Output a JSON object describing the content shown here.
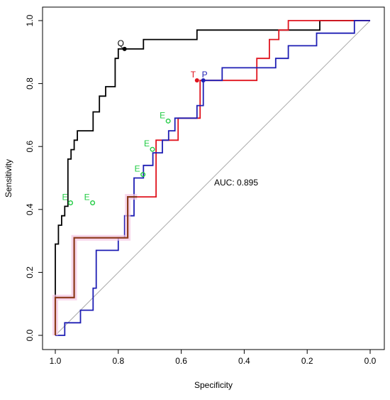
{
  "chart_data": {
    "type": "line",
    "title": "",
    "xlabel": "Specificity",
    "ylabel": "Sensitivity",
    "xlim": [
      1.0,
      0.0
    ],
    "ylim": [
      0.0,
      1.0
    ],
    "x_reversed": true,
    "x_ticks": [
      "1.0",
      "0.8",
      "0.6",
      "0.4",
      "0.2",
      "0.0"
    ],
    "y_ticks": [
      "0.0",
      "0.2",
      "0.4",
      "0.6",
      "0.8",
      "1.0"
    ],
    "grid": false,
    "legend": "none",
    "annotation": "AUC: 0.895",
    "diagonal": {
      "x": [
        1.0,
        0.0
      ],
      "y": [
        0.0,
        1.0
      ],
      "color": "#aaaaaa"
    },
    "series": [
      {
        "color": "#000000",
        "x": [
          1.0,
          1.0,
          0.99,
          0.99,
          0.98,
          0.98,
          0.97,
          0.97,
          0.96,
          0.96,
          0.95,
          0.95,
          0.94,
          0.94,
          0.93,
          0.93,
          0.92,
          0.92,
          0.88,
          0.88,
          0.86,
          0.86,
          0.84,
          0.84,
          0.81,
          0.81,
          0.8,
          0.8,
          0.78,
          0.78,
          0.77,
          0.77,
          0.72,
          0.72,
          0.7,
          0.7,
          0.55,
          0.55,
          0.18,
          0.16,
          0.16,
          0.0
        ],
        "y": [
          0.0,
          0.29,
          0.29,
          0.35,
          0.35,
          0.38,
          0.38,
          0.41,
          0.41,
          0.56,
          0.56,
          0.59,
          0.59,
          0.62,
          0.62,
          0.65,
          0.65,
          0.65,
          0.65,
          0.71,
          0.71,
          0.76,
          0.76,
          0.79,
          0.79,
          0.88,
          0.88,
          0.91,
          0.91,
          0.91,
          0.91,
          0.91,
          0.91,
          0.94,
          0.94,
          0.94,
          0.94,
          0.97,
          0.97,
          0.97,
          1.0,
          1.0
        ]
      },
      {
        "color": "#e0141e",
        "x": [
          1.0,
          1.0,
          0.94,
          0.94,
          0.77,
          0.77,
          0.68,
          0.68,
          0.61,
          0.61,
          0.54,
          0.54,
          0.47,
          0.47,
          0.36,
          0.36,
          0.32,
          0.32,
          0.29,
          0.29,
          0.26,
          0.26,
          0.0
        ],
        "y": [
          0.0,
          0.12,
          0.12,
          0.31,
          0.31,
          0.44,
          0.44,
          0.62,
          0.62,
          0.69,
          0.69,
          0.81,
          0.81,
          0.81,
          0.81,
          0.88,
          0.88,
          0.94,
          0.94,
          0.97,
          0.97,
          1.0,
          1.0
        ]
      },
      {
        "color": "#1e1eb4",
        "x": [
          1.0,
          0.97,
          0.97,
          0.92,
          0.92,
          0.88,
          0.88,
          0.87,
          0.87,
          0.85,
          0.85,
          0.8,
          0.8,
          0.78,
          0.78,
          0.75,
          0.75,
          0.72,
          0.72,
          0.69,
          0.69,
          0.66,
          0.66,
          0.64,
          0.64,
          0.62,
          0.62,
          0.59,
          0.59,
          0.55,
          0.55,
          0.53,
          0.53,
          0.47,
          0.47,
          0.35,
          0.35,
          0.3,
          0.3,
          0.26,
          0.26,
          0.17,
          0.17,
          0.05,
          0.05,
          0.0
        ],
        "y": [
          0.0,
          0.0,
          0.04,
          0.04,
          0.08,
          0.08,
          0.15,
          0.15,
          0.27,
          0.27,
          0.27,
          0.27,
          0.31,
          0.31,
          0.38,
          0.38,
          0.5,
          0.5,
          0.54,
          0.54,
          0.58,
          0.58,
          0.62,
          0.62,
          0.65,
          0.65,
          0.69,
          0.69,
          0.69,
          0.69,
          0.73,
          0.73,
          0.81,
          0.81,
          0.85,
          0.85,
          0.85,
          0.85,
          0.88,
          0.88,
          0.92,
          0.92,
          0.96,
          0.96,
          1.0,
          1.0
        ]
      },
      {
        "color": "#8b3a1a",
        "x": [
          1.0,
          1.0,
          0.94,
          0.94,
          0.77,
          0.77,
          0.74
        ],
        "y": [
          0.0,
          0.12,
          0.12,
          0.31,
          0.31,
          0.44,
          0.44
        ]
      }
    ],
    "points": [
      {
        "label": "Q",
        "x": 0.78,
        "y": 0.91,
        "color": "#000000"
      },
      {
        "label": "T",
        "x": 0.55,
        "y": 0.81,
        "color": "#e0141e"
      },
      {
        "label": "P",
        "x": 0.53,
        "y": 0.81,
        "color": "#1e1eb4"
      }
    ],
    "e_markers": [
      {
        "label": "E",
        "x": 0.965,
        "y": 0.43
      },
      {
        "label": "E",
        "x": 0.895,
        "y": 0.43
      },
      {
        "label": "E",
        "x": 0.735,
        "y": 0.52
      },
      {
        "label": "E",
        "x": 0.705,
        "y": 0.6
      },
      {
        "label": "E",
        "x": 0.655,
        "y": 0.69
      }
    ],
    "e_marker_color": "#22cc44"
  }
}
